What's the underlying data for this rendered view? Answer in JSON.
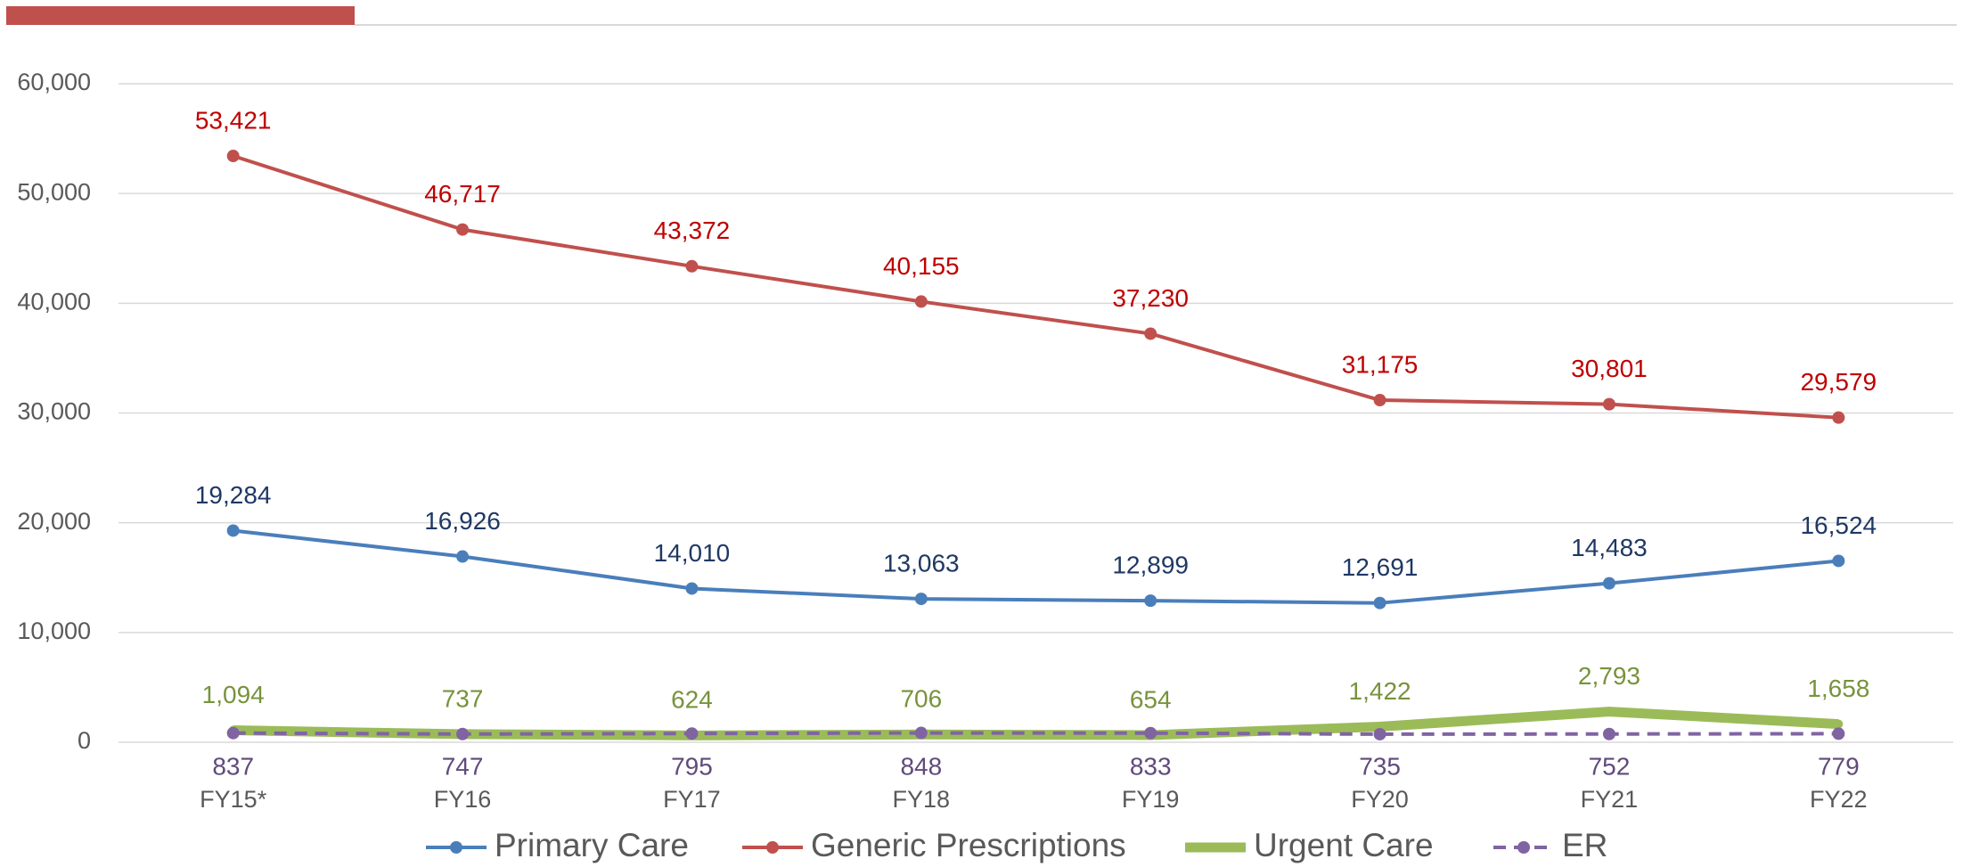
{
  "chart_data": {
    "type": "line",
    "categories": [
      "FY15*",
      "FY16",
      "FY17",
      "FY18",
      "FY19",
      "FY20",
      "FY21",
      "FY22"
    ],
    "series": [
      {
        "name": "Primary Care",
        "color": "#4a7ebb",
        "label_color": "#1f3864",
        "values": [
          19284,
          16926,
          14010,
          13063,
          12899,
          12691,
          14483,
          16524
        ],
        "value_labels": [
          "19,284",
          "16,926",
          "14,010",
          "13,063",
          "12,899",
          "12,691",
          "14,483",
          "16,524"
        ]
      },
      {
        "name": "Generic Prescriptions",
        "color": "#c0504d",
        "label_color": "#c00000",
        "values": [
          53421,
          46717,
          43372,
          40155,
          37230,
          31175,
          30801,
          29579
        ],
        "value_labels": [
          "53,421",
          "46,717",
          "43,372",
          "40,155",
          "37,230",
          "31,175",
          "30,801",
          "29,579"
        ]
      },
      {
        "name": "Urgent Care",
        "color": "#9bbb59",
        "label_color": "#77933c",
        "thick": true,
        "values": [
          1094,
          737,
          624,
          706,
          654,
          1422,
          2793,
          1658
        ],
        "value_labels": [
          "1,094",
          "737",
          "624",
          "706",
          "654",
          "1,422",
          "2,793",
          "1,658"
        ]
      },
      {
        "name": "ER",
        "color": "#8064a2",
        "label_color": "#604a7b",
        "dashed": true,
        "label_position": "below",
        "values": [
          837,
          747,
          795,
          848,
          833,
          735,
          752,
          779
        ]
      }
    ],
    "ylim": [
      0,
      60000
    ],
    "yticks": [
      0,
      {
        "value": 10000,
        "label": "10,000"
      },
      {
        "value": 20000,
        "label": "20,000"
      },
      {
        "value": 30000,
        "label": "30,000"
      },
      {
        "value": 40000,
        "label": "40,000"
      },
      {
        "value": 50000,
        "label": "50,000"
      },
      {
        "value": 60000,
        "label": "60,000"
      }
    ],
    "grid": true,
    "legend": "bottom"
  }
}
